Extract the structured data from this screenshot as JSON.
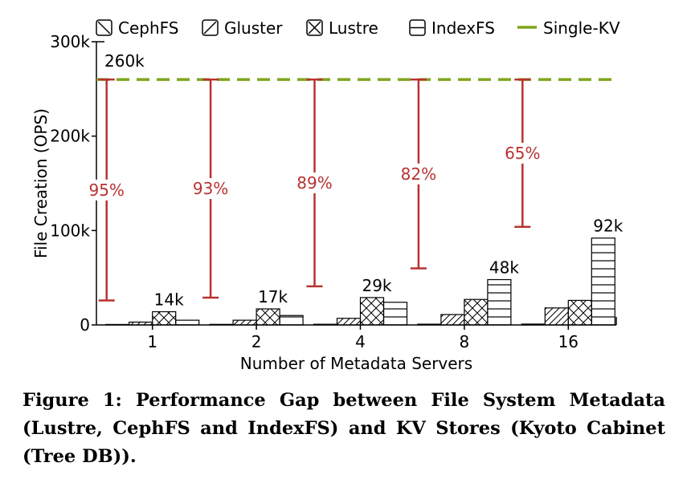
{
  "chart_data": {
    "type": "bar",
    "xlabel": "Number of Metadata Servers",
    "ylabel": "File Creation (OPS)",
    "ylim": [
      0,
      300000
    ],
    "y_ticks": [
      0,
      100000,
      200000,
      300000
    ],
    "y_tick_labels": [
      "0",
      "100k",
      "200k",
      "300k"
    ],
    "categories": [
      "1",
      "2",
      "4",
      "8",
      "16"
    ],
    "series": [
      {
        "name": "CephFS",
        "pattern": "diagonal-back",
        "values": [
          500,
          600,
          700,
          800,
          900
        ]
      },
      {
        "name": "Gluster",
        "pattern": "diagonal-forward",
        "values": [
          3000,
          5000,
          7000,
          11000,
          18000
        ]
      },
      {
        "name": "Lustre",
        "pattern": "cross",
        "values": [
          14000,
          17000,
          29000,
          27000,
          26000
        ]
      },
      {
        "name": "IndexFS",
        "pattern": "horizontal",
        "values": [
          5000,
          10000,
          24000,
          48000,
          92000
        ]
      }
    ],
    "reference_line": {
      "name": "Single-KV",
      "value": 260000,
      "label": "260k",
      "color": "#7fa51d"
    },
    "gap_annotations": [
      {
        "category": "1",
        "percent": "95%",
        "value": "14k"
      },
      {
        "category": "2",
        "percent": "93%",
        "value": "17k"
      },
      {
        "category": "4",
        "percent": "89%",
        "value": "29k"
      },
      {
        "category": "8",
        "percent": "82%",
        "value": "48k"
      },
      {
        "category": "16",
        "percent": "65%",
        "value": "92k"
      }
    ],
    "annotation_color": "#b83232",
    "legend_position": "top"
  },
  "caption": "Figure 1: Performance Gap between File System Metadata (Lustre, CephFS and IndexFS) and KV Stores (Kyoto Cabinet (Tree DB))."
}
